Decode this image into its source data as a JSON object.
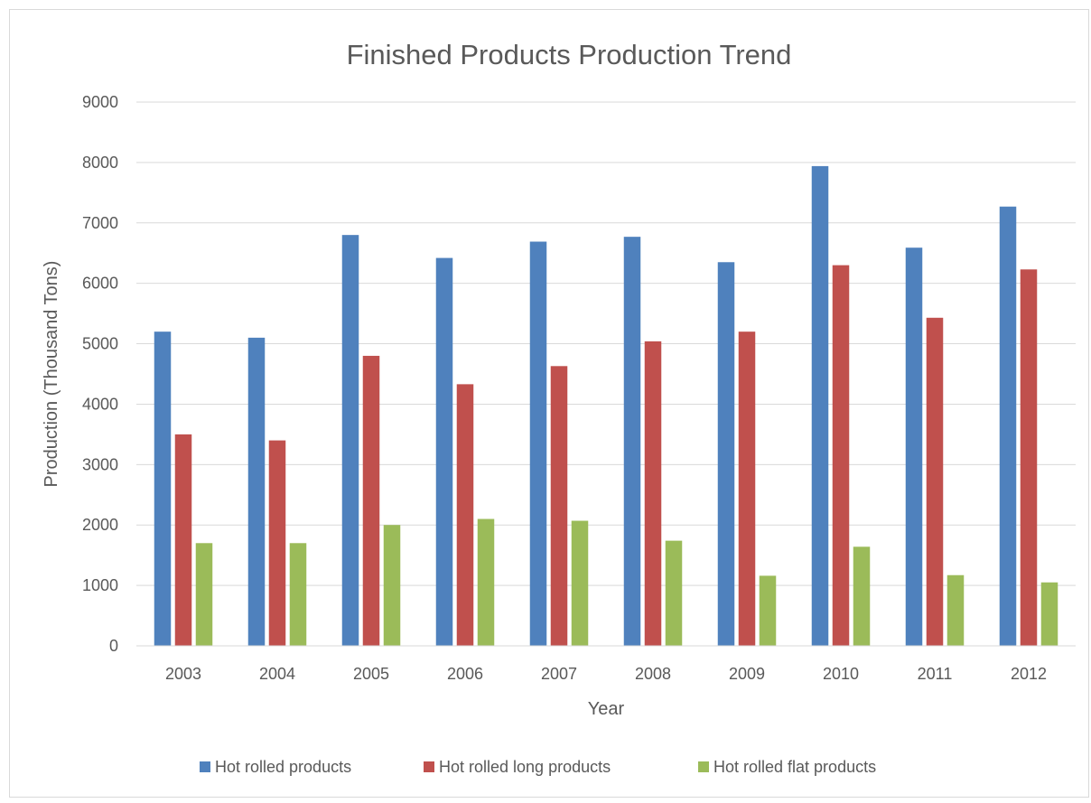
{
  "chart_data": {
    "type": "bar",
    "title": "Finished Products Production Trend",
    "xlabel": "Year",
    "ylabel": "Production (Thousand Tons)",
    "ylim": [
      0,
      9000
    ],
    "yticks": [
      "0",
      "1000",
      "2000",
      "3000",
      "4000",
      "5000",
      "6000",
      "7000",
      "8000",
      "9000"
    ],
    "grid": true,
    "legend_position": "bottom",
    "categories": [
      "2003",
      "2004",
      "2005",
      "2006",
      "2007",
      "2008",
      "2009",
      "2010",
      "2011",
      "2012"
    ],
    "series": [
      {
        "name": "Hot rolled products",
        "color": "#4F81BD",
        "values": [
          5200,
          5100,
          6800,
          6420,
          6690,
          6770,
          6350,
          7940,
          6590,
          7270
        ]
      },
      {
        "name": "Hot rolled long products",
        "color": "#C0504D",
        "values": [
          3500,
          3400,
          4800,
          4330,
          4630,
          5040,
          5200,
          6300,
          5430,
          6230
        ]
      },
      {
        "name": "Hot rolled flat products",
        "color": "#9BBB59",
        "values": [
          1700,
          1700,
          2000,
          2100,
          2070,
          1740,
          1160,
          1640,
          1170,
          1050
        ]
      }
    ]
  }
}
